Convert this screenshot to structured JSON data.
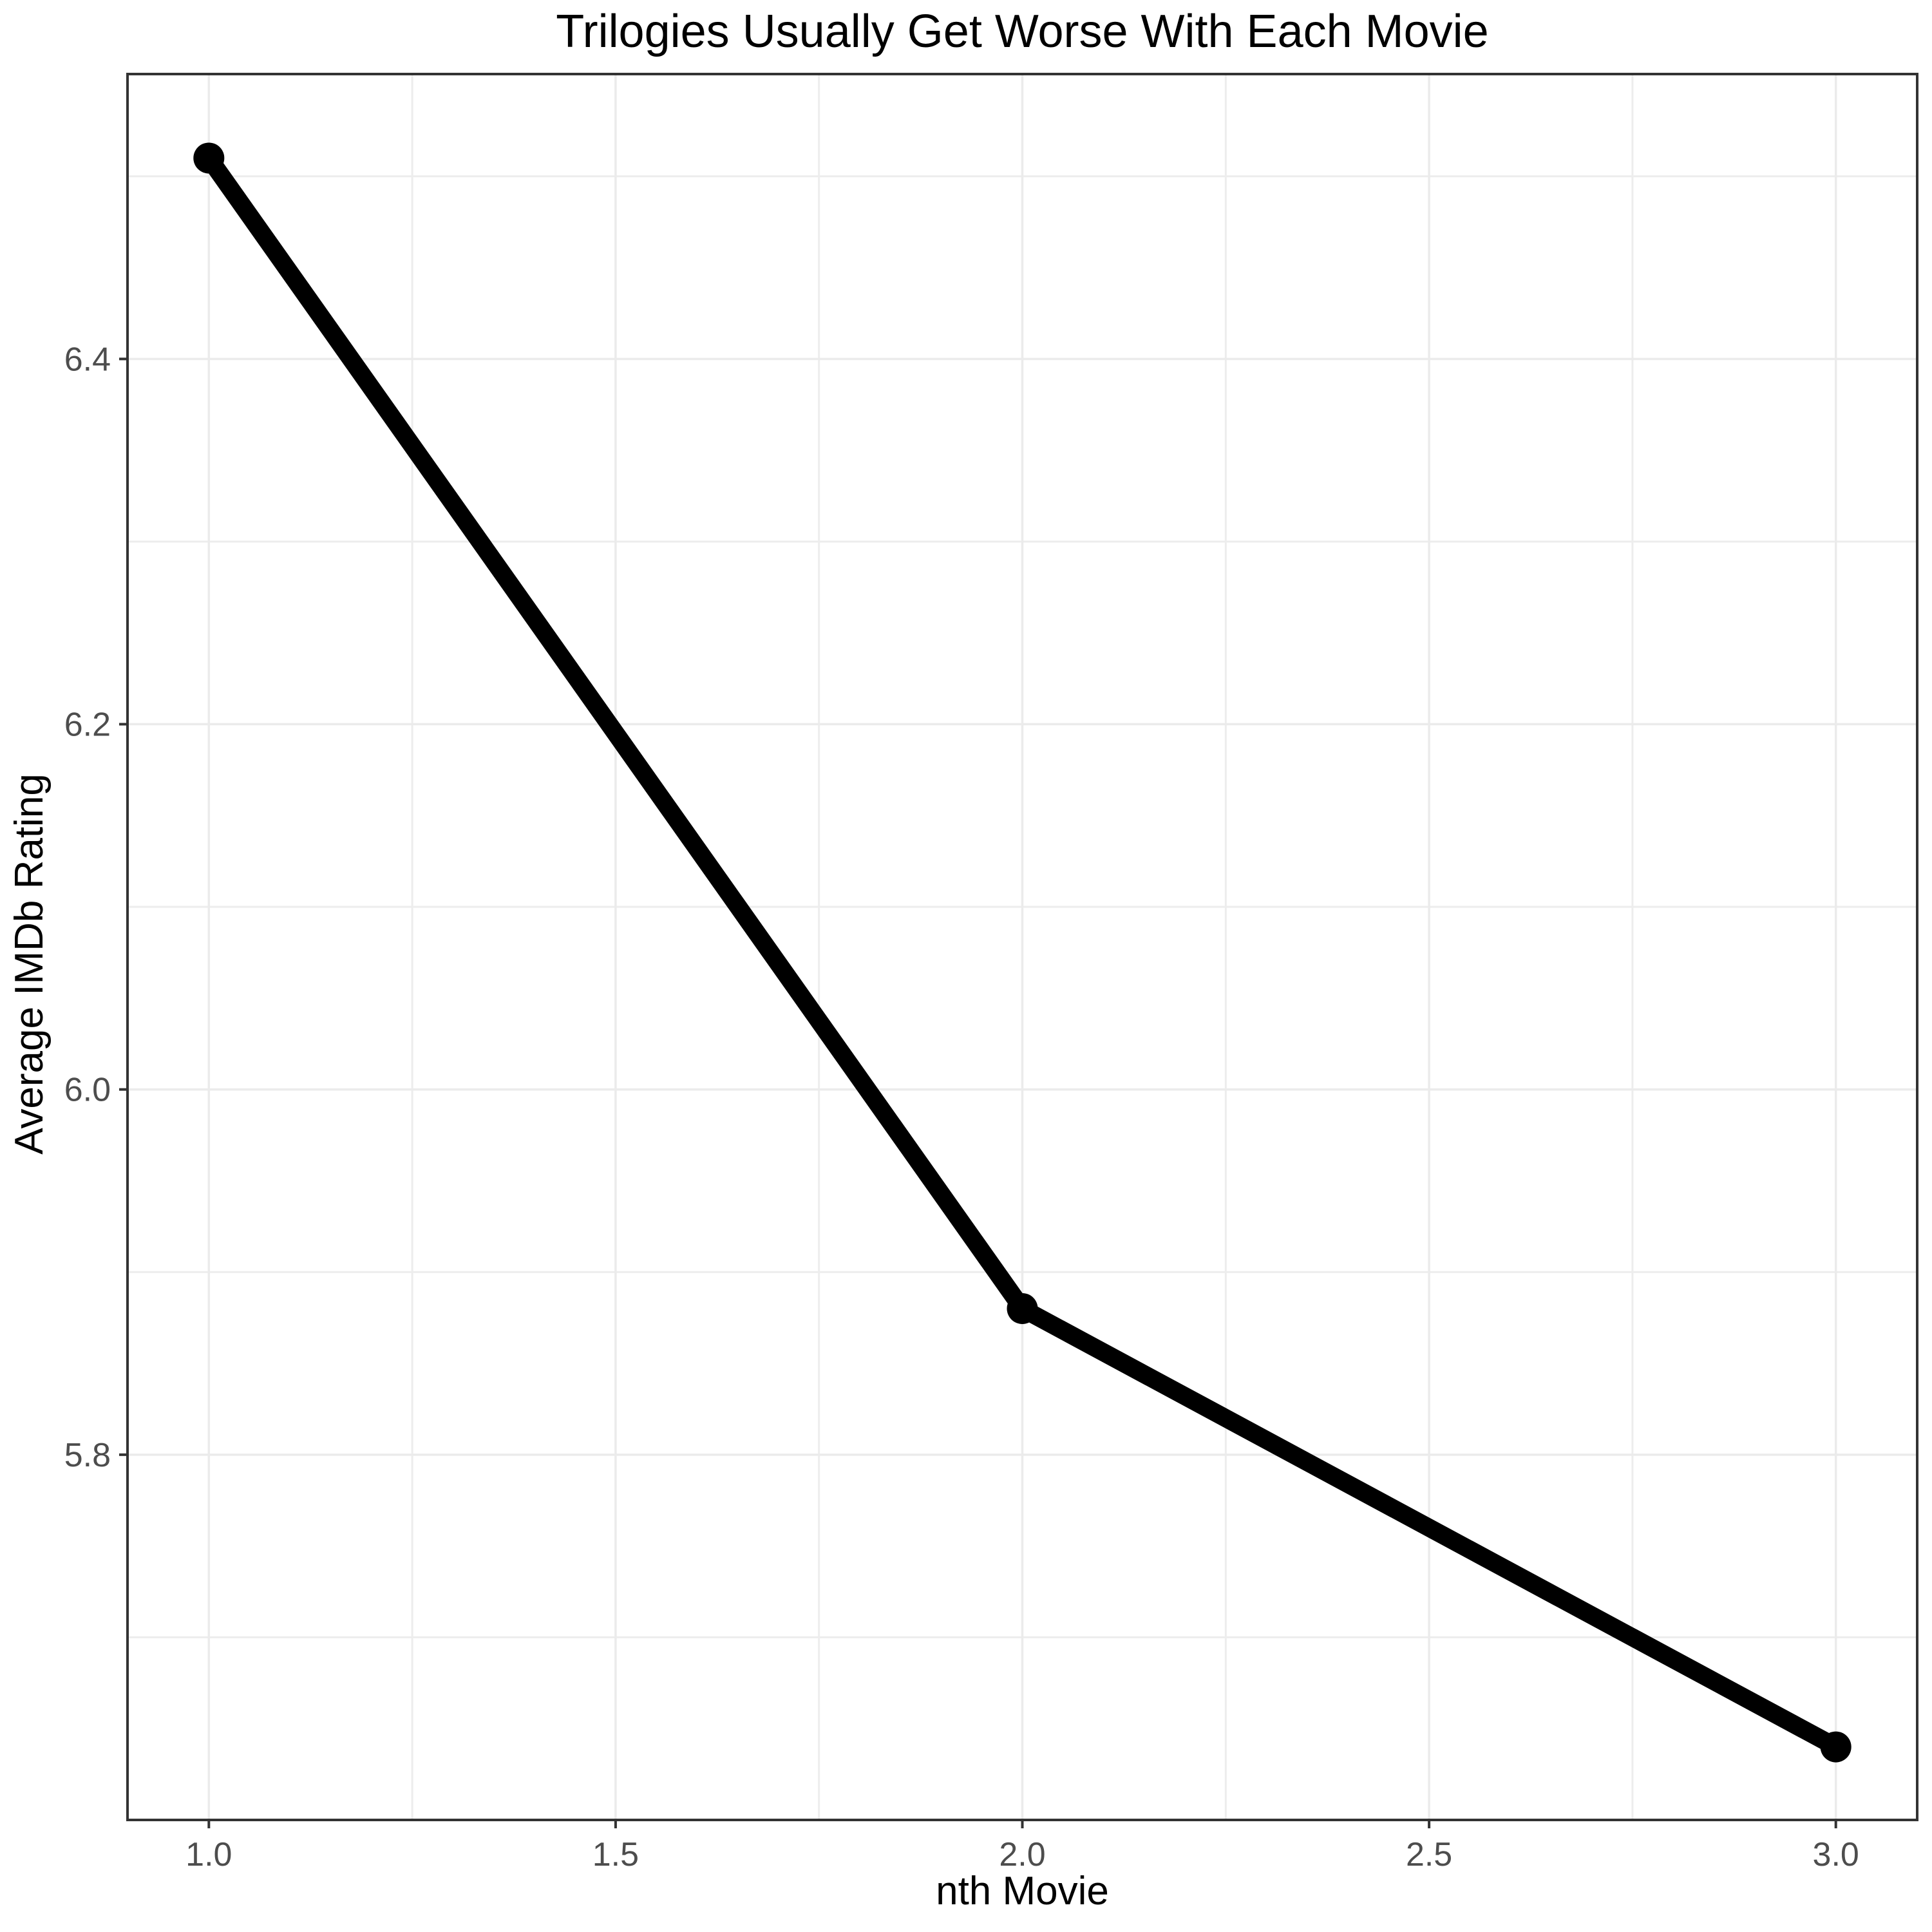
{
  "page": {
    "background_color": "#FFFFFF"
  },
  "chart_data": {
    "type": "line",
    "title": "Trilogies Usually Get Worse With Each Movie",
    "xlabel": "nth Movie",
    "ylabel": "Average IMDb Rating",
    "x": [
      1,
      2,
      3
    ],
    "y": [
      6.51,
      5.88,
      5.64
    ],
    "xlim": [
      0.9,
      3.1
    ],
    "ylim": [
      5.6,
      6.556
    ],
    "x_ticks": [
      {
        "value": 1.0,
        "label": "1.0"
      },
      {
        "value": 1.5,
        "label": "1.5"
      },
      {
        "value": 2.0,
        "label": "2.0"
      },
      {
        "value": 2.5,
        "label": "2.5"
      },
      {
        "value": 3.0,
        "label": "3.0"
      }
    ],
    "y_ticks": [
      {
        "value": 5.8,
        "label": "5.8"
      },
      {
        "value": 6.0,
        "label": "6.0"
      },
      {
        "value": 6.2,
        "label": "6.2"
      },
      {
        "value": 6.4,
        "label": "6.4"
      }
    ],
    "x_minor_gridlines": [
      1.25,
      1.75,
      2.25,
      2.75
    ],
    "y_minor_gridlines": [
      5.7,
      5.9,
      6.1,
      6.3,
      6.5
    ],
    "grid": true,
    "legend_position": "none",
    "colors": {
      "line": "#000000",
      "point": "#000000",
      "grid_major": "#EBEBEB",
      "grid_minor": "#EDEDED",
      "panel_border": "#333333",
      "tick_mark": "#333333",
      "tick_label": "#4D4D4D",
      "title": "#000000",
      "axis_title": "#000000",
      "panel_background": "#FFFFFF"
    }
  }
}
